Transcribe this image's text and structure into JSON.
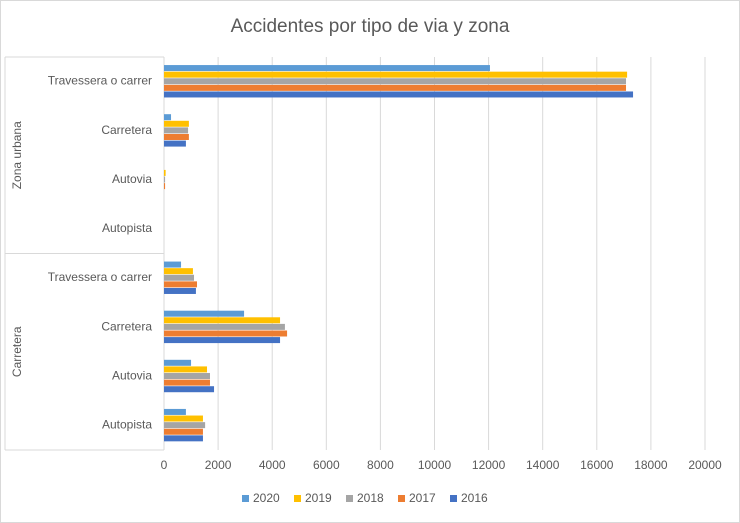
{
  "chart_data": {
    "type": "bar",
    "orientation": "horizontal",
    "title": "Accidentes por tipo de via y zona",
    "groups": [
      {
        "name": "Zona urbana",
        "categories": [
          "Travessera o carrer",
          "Carretera",
          "Autovia",
          "Autopista"
        ]
      },
      {
        "name": "Carretera",
        "categories": [
          "Travessera o carrer",
          "Carretera",
          "Autovia",
          "Autopista"
        ]
      }
    ],
    "series": [
      {
        "name": "2020",
        "color": "#5b9bd5",
        "values": [
          12050,
          260,
          0,
          0,
          630,
          2960,
          1000,
          810
        ]
      },
      {
        "name": "2019",
        "color": "#ffc000",
        "values": [
          17120,
          920,
          60,
          0,
          1070,
          4290,
          1590,
          1440
        ]
      },
      {
        "name": "2018",
        "color": "#a5a5a5",
        "values": [
          17080,
          890,
          40,
          0,
          1110,
          4470,
          1700,
          1520
        ]
      },
      {
        "name": "2017",
        "color": "#ed7d31",
        "values": [
          17080,
          920,
          40,
          0,
          1220,
          4550,
          1700,
          1440
        ]
      },
      {
        "name": "2016",
        "color": "#4472c4",
        "values": [
          17340,
          810,
          0,
          0,
          1180,
          4290,
          1850,
          1440
        ]
      }
    ],
    "xlim": [
      0,
      20000
    ],
    "xticks": [
      0,
      2000,
      4000,
      6000,
      8000,
      10000,
      12000,
      14000,
      16000,
      18000,
      20000
    ],
    "grid": true,
    "legend": "bottom"
  }
}
